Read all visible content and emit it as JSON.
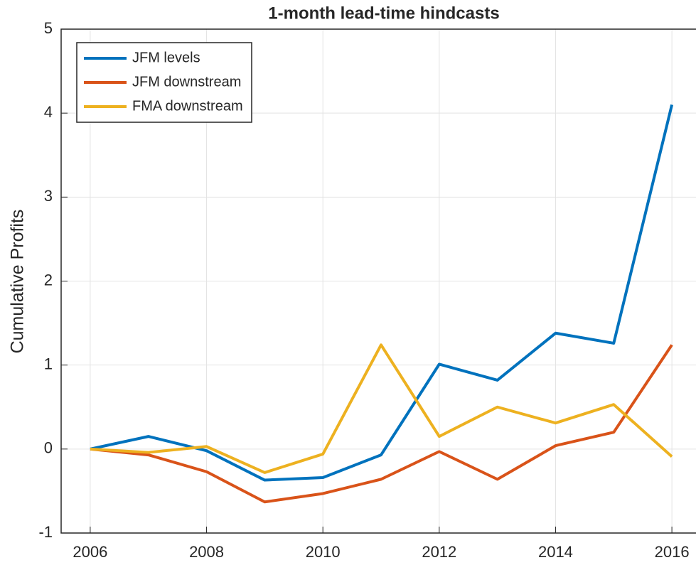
{
  "chart_data": {
    "type": "line",
    "title": "1-month lead-time hindcasts",
    "y_label": "Cumulative Profits",
    "x": [
      2006,
      2007,
      2008,
      2009,
      2010,
      2011,
      2012,
      2013,
      2014,
      2015,
      2016
    ],
    "series": [
      {
        "name": "JFM levels",
        "color": "#0072bd",
        "values": [
          0,
          0.15,
          -0.02,
          -0.37,
          -0.34,
          -0.07,
          1.01,
          0.82,
          1.38,
          1.26,
          4.1
        ]
      },
      {
        "name": "JFM downstream",
        "color": "#d95319",
        "values": [
          0,
          -0.07,
          -0.27,
          -0.63,
          -0.53,
          -0.36,
          -0.03,
          -0.36,
          0.04,
          0.2,
          1.24
        ]
      },
      {
        "name": "FMA downstream",
        "color": "#edb120",
        "values": [
          0,
          -0.04,
          0.03,
          -0.28,
          -0.06,
          1.24,
          0.15,
          0.5,
          0.31,
          0.53,
          -0.09
        ]
      }
    ],
    "xlim": [
      2005.5,
      2016.5
    ],
    "xticks": [
      2006,
      2008,
      2010,
      2012,
      2014,
      2016
    ],
    "ylim": [
      -1,
      5
    ],
    "yticks": [
      -1,
      0,
      1,
      2,
      3,
      4,
      5
    ],
    "grid": true,
    "legend": "upper left"
  }
}
